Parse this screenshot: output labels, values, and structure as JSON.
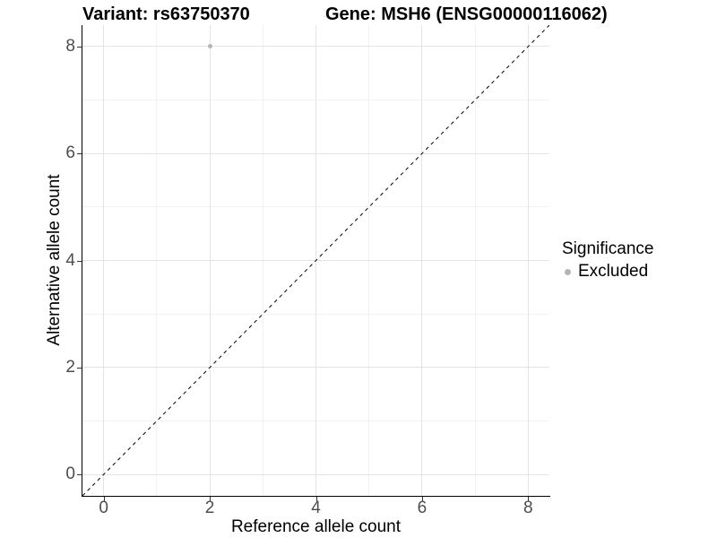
{
  "chart_data": {
    "type": "scatter",
    "titles": {
      "left": "Variant: rs63750370",
      "right": "Gene: MSH6 (ENSG00000116062)"
    },
    "xlabel": "Reference allele count",
    "ylabel": "Alternative allele count",
    "xlim": [
      -0.4,
      8.4
    ],
    "ylim": [
      -0.4,
      8.4
    ],
    "x_major_ticks": [
      0,
      2,
      4,
      6,
      8
    ],
    "y_major_ticks": [
      0,
      2,
      4,
      6,
      8
    ],
    "x_minor_gridlines": [
      1,
      3,
      5,
      7
    ],
    "y_minor_gridlines": [
      1,
      3,
      5,
      7
    ],
    "grid": {
      "major": true,
      "minor": true
    },
    "points": [
      {
        "x": 2,
        "y": 8,
        "significance": "Excluded",
        "color": "#b4b4b4",
        "radius": 2.5
      }
    ],
    "reference_line": {
      "description": "y = x identity line",
      "style": "dashed",
      "from": {
        "x": -0.4,
        "y": -0.4
      },
      "to": {
        "x": 8.4,
        "y": 8.4
      },
      "color": "#000000"
    },
    "legend": {
      "title": "Significance",
      "position": "right",
      "items": [
        {
          "label": "Excluded",
          "color": "#b4b4b4"
        }
      ]
    }
  },
  "colors": {
    "background": "#ffffff",
    "axis_line": "#000000",
    "grid_major": "#e4e4e4",
    "grid_minor": "#f2f2f2",
    "tick_mark": "#333333",
    "tick_label": "#4d4d4d",
    "text": "#000000",
    "point": "#b4b4b4"
  }
}
